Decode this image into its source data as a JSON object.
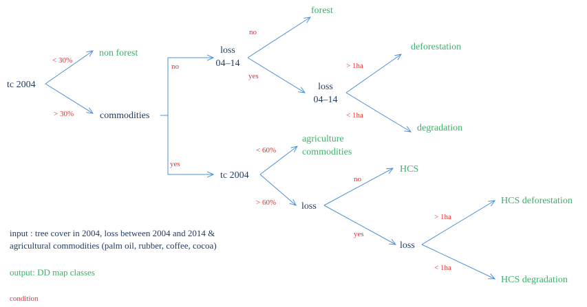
{
  "colors": {
    "node_dark": "#1f3a5f",
    "output_green": "#3bb26a",
    "condition_red": "#e03030",
    "arrow_blue": "#4a90d9"
  },
  "nodes": {
    "tc2004_root": "tc 2004",
    "non_forest": "non forest",
    "commodities": "commodities",
    "loss_0414_a_line1": "loss",
    "loss_0414_a_line2": "04–14",
    "forest": "forest",
    "loss_0414_b_line1": "loss",
    "loss_0414_b_line2": "04–14",
    "deforestation": "deforestation",
    "degradation": "degradation",
    "tc2004_mid": "tc 2004",
    "agri_line1": "agriculture",
    "agri_line2": "commodities",
    "loss_c": "loss",
    "hcs": "HCS",
    "loss_d": "loss",
    "hcs_deforestation": "HCS deforestation",
    "hcs_degradation": "HCS degradation"
  },
  "conditions": {
    "lt30": "< 30%",
    "gt30": "> 30%",
    "no_a": "no",
    "yes_a": "yes",
    "no_b": "no",
    "yes_b": "yes",
    "gt1ha_a": "> 1ha",
    "lt1ha_a": "< 1ha",
    "lt60": "< 60%",
    "gt60": "> 60%",
    "no_c": "no",
    "yes_c": "yes",
    "gt1ha_b": "> 1ha",
    "lt1ha_b": "< 1ha"
  },
  "legend": {
    "input_line1": "input : tree cover in 2004, loss between 2004 and 2014 &",
    "input_line2": "agricultural commodities (palm oil, rubber, coffee, cocoa)",
    "output": "output: DD map classes",
    "condition": "condition"
  }
}
